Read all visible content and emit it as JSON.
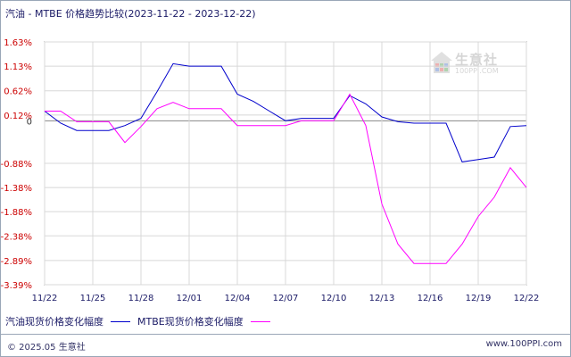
{
  "title": "汽油 - MTBE 价格趋势比较(2023-11-22 - 2023-12-22)",
  "watermark": {
    "name": "生意社",
    "url": "100PPI.COM"
  },
  "footer": {
    "copyright": "© 2025.05 生意社",
    "site": "www.100PPI.com"
  },
  "colors": {
    "gasoline": "#0000cc",
    "mtbe": "#ff00ff",
    "grid": "#d8d8d8",
    "zero_line": "#888888",
    "y_tick": "#cc0000",
    "x_tick": "#1a1a66"
  },
  "chart_data": {
    "type": "line",
    "title": "汽油 - MTBE 价格趋势比较(2023-11-22 - 2023-12-22)",
    "xlabel": "",
    "ylabel": "",
    "ylim": [
      -3.39,
      1.63
    ],
    "yticks": [
      1.63,
      1.13,
      0.62,
      0.12,
      0,
      -0.88,
      -1.38,
      -1.88,
      -2.38,
      -2.89,
      -3.39
    ],
    "ytick_labels": [
      "1.63%",
      "1.13%",
      "0.62%",
      "0.12%",
      "0",
      "-0.88%",
      "-1.38%",
      "-1.88%",
      "-2.38%",
      "-2.89%",
      "-3.39%"
    ],
    "x": [
      "11/22",
      "11/23",
      "11/24",
      "11/25",
      "11/26",
      "11/27",
      "11/28",
      "11/29",
      "11/30",
      "12/01",
      "12/02",
      "12/03",
      "12/04",
      "12/05",
      "12/06",
      "12/07",
      "12/08",
      "12/09",
      "12/10",
      "12/11",
      "12/12",
      "12/13",
      "12/14",
      "12/15",
      "12/16",
      "12/17",
      "12/18",
      "12/19",
      "12/20",
      "12/21",
      "12/22"
    ],
    "xtick_labels": [
      "11/22",
      "11/25",
      "11/28",
      "12/01",
      "12/04",
      "12/07",
      "12/10",
      "12/13",
      "12/16",
      "12/19",
      "12/22"
    ],
    "grid": true,
    "legend_position": "bottom-left",
    "series": [
      {
        "name": "汽油现货价格变化幅度",
        "color": "#0000cc",
        "values": [
          0.2,
          -0.05,
          -0.2,
          -0.2,
          -0.2,
          -0.1,
          0.05,
          0.6,
          1.18,
          1.13,
          1.13,
          1.13,
          0.55,
          0.4,
          0.2,
          0.0,
          0.05,
          0.05,
          0.05,
          0.52,
          0.35,
          0.08,
          -0.02,
          -0.05,
          -0.05,
          -0.05,
          -0.85,
          -0.8,
          -0.75,
          -0.12,
          -0.1
        ]
      },
      {
        "name": "MTBE现货价格变化幅度",
        "color": "#ff00ff",
        "values": [
          0.2,
          0.2,
          -0.02,
          -0.02,
          -0.02,
          -0.45,
          -0.12,
          0.25,
          0.38,
          0.25,
          0.25,
          0.25,
          -0.1,
          -0.1,
          -0.1,
          -0.1,
          0.0,
          0.0,
          0.0,
          0.55,
          -0.1,
          -1.72,
          -2.55,
          -2.95,
          -2.95,
          -2.95,
          -2.55,
          -1.98,
          -1.58,
          -0.97,
          -1.38
        ]
      }
    ]
  }
}
